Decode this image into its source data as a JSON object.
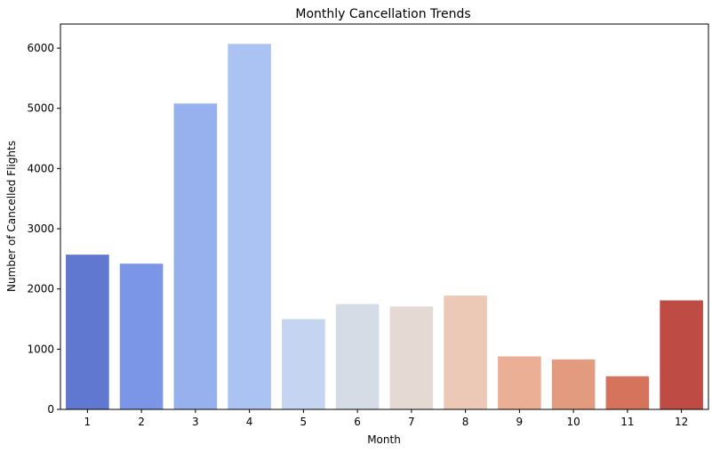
{
  "chart_data": {
    "type": "bar",
    "title": "Monthly Cancellation Trends",
    "xlabel": "Month",
    "ylabel": "Number of Cancelled Flights",
    "categories": [
      "1",
      "2",
      "3",
      "4",
      "5",
      "6",
      "7",
      "8",
      "9",
      "10",
      "11",
      "12"
    ],
    "values": [
      2570,
      2420,
      5080,
      6070,
      1500,
      1750,
      1710,
      1890,
      880,
      830,
      550,
      1810
    ],
    "colors": [
      "#6178d1",
      "#7b96e6",
      "#97b1ee",
      "#abc3f3",
      "#c5d4f0",
      "#d5dce5",
      "#e4d9d3",
      "#ecc9b6",
      "#ebaf95",
      "#e39b80",
      "#d5735d",
      "#bf4b45"
    ],
    "ylim": [
      0,
      6400
    ],
    "yticks": [
      "0",
      "1000",
      "2000",
      "3000",
      "4000",
      "5000",
      "6000"
    ],
    "grid": false,
    "legend": "none"
  }
}
